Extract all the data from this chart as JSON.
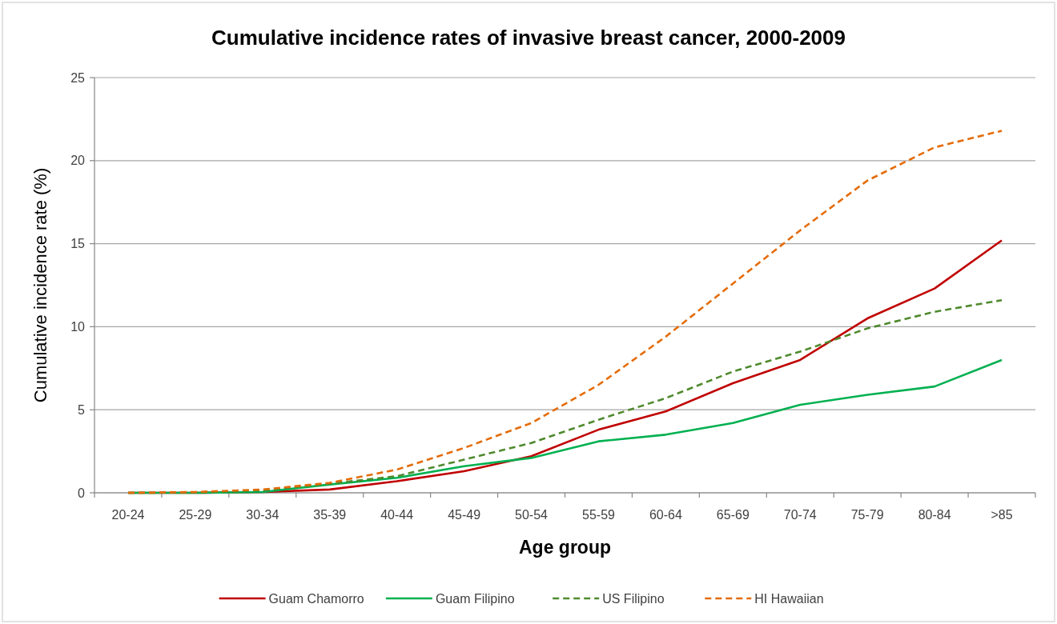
{
  "chart_data": {
    "type": "line",
    "title": "Cumulative incidence rates of invasive breast cancer, 2000-2009",
    "xlabel": "Age group",
    "ylabel": "Cumulative incidence rate (%)",
    "categories": [
      "20-24",
      "25-29",
      "30-34",
      "35-39",
      "40-44",
      "45-49",
      "50-54",
      "55-59",
      "60-64",
      "65-69",
      "70-74",
      "75-79",
      "80-84",
      ">85"
    ],
    "series": [
      {
        "name": "Guam Chamorro",
        "color": "#c00000",
        "line_style": "solid",
        "values": [
          0,
          0,
          0.05,
          0.2,
          0.7,
          1.3,
          2.2,
          3.8,
          4.9,
          6.6,
          8.0,
          10.5,
          12.3,
          15.2
        ]
      },
      {
        "name": "Guam Filipino",
        "color": "#00b050",
        "line_style": "solid",
        "values": [
          0,
          0,
          0.05,
          0.5,
          0.9,
          1.6,
          2.1,
          3.1,
          3.5,
          4.2,
          5.3,
          5.9,
          6.4,
          8.0
        ]
      },
      {
        "name": "US Filipino",
        "color": "#4f8a2e",
        "line_style": "dashed",
        "values": [
          0,
          0.02,
          0.15,
          0.55,
          1.0,
          2.0,
          3.0,
          4.4,
          5.7,
          7.3,
          8.5,
          9.9,
          10.9,
          11.6
        ]
      },
      {
        "name": "HI Hawaiian",
        "color": "#e46c0a",
        "line_style": "dashed",
        "values": [
          0,
          0.05,
          0.2,
          0.6,
          1.4,
          2.7,
          4.2,
          6.5,
          9.4,
          12.6,
          15.8,
          18.8,
          20.8,
          21.8
        ]
      }
    ],
    "ylim": [
      0,
      25
    ],
    "yticks": [
      0,
      5,
      10,
      15,
      20,
      25
    ],
    "grid": "y",
    "legend": "bottom"
  }
}
